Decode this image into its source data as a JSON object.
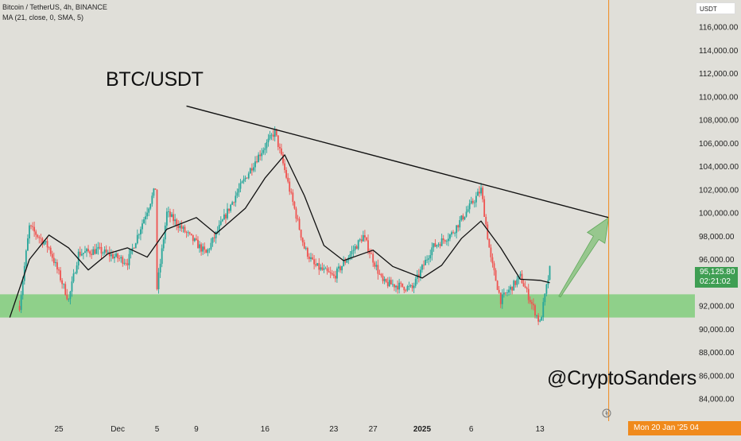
{
  "header": {
    "symbol_line": "Bitcoin / TetherUS, 4h, BINANCE",
    "indicator_line": "MA (21, close, 0, SMA, 5)"
  },
  "annotations": {
    "title": "BTC/USDT",
    "watermark": "@CryptoSanders"
  },
  "price_axis": {
    "currency": "USDT",
    "last_price": "95,125.80",
    "countdown": "02:21:02"
  },
  "time_axis": {
    "crosshair_date": "Mon 20 Jan '25   04"
  },
  "colors": {
    "background": "#e0dfd9",
    "up_candle": "#26a69a",
    "down_candle": "#ef5350",
    "support_zone": "#8fd08a",
    "trendline": "#111111",
    "moving_average": "#111111",
    "crosshair": "#f08a1c",
    "arrow": "#7fbf74"
  },
  "chart_data": {
    "type": "candlestick",
    "ylim": [
      82500,
      117500
    ],
    "y_ticks": [
      "84,000.00",
      "86,000.00",
      "88,000.00",
      "90,000.00",
      "92,000.00",
      "94,000.00",
      "96,000.00",
      "98,000.00",
      "100,000.00",
      "102,000.00",
      "104,000.00",
      "106,000.00",
      "108,000.00",
      "110,000.00",
      "112,000.00",
      "114,000.00",
      "116,000.00"
    ],
    "x_ticks": [
      {
        "label": "25",
        "bold": false
      },
      {
        "label": "Dec",
        "bold": false
      },
      {
        "label": "5",
        "bold": false
      },
      {
        "label": "9",
        "bold": false
      },
      {
        "label": "16",
        "bold": false
      },
      {
        "label": "23",
        "bold": false
      },
      {
        "label": "27",
        "bold": false
      },
      {
        "label": "2025",
        "bold": true
      },
      {
        "label": "6",
        "bold": false
      },
      {
        "label": "13",
        "bold": false
      }
    ],
    "price_path": [
      {
        "date": "2024-11-21",
        "close": 92000
      },
      {
        "date": "2024-11-22",
        "close": 98800
      },
      {
        "date": "2024-11-24",
        "close": 97000
      },
      {
        "date": "2024-11-26",
        "close": 92500
      },
      {
        "date": "2024-11-27",
        "close": 96500
      },
      {
        "date": "2024-11-29",
        "close": 96800
      },
      {
        "date": "2024-12-02",
        "close": 95800
      },
      {
        "date": "2024-12-05",
        "close": 102500
      },
      {
        "date": "2024-12-05",
        "close": 93500
      },
      {
        "date": "2024-12-06",
        "close": 100000
      },
      {
        "date": "2024-12-10",
        "close": 96500
      },
      {
        "date": "2024-12-13",
        "close": 101500
      },
      {
        "date": "2024-12-15",
        "close": 104500
      },
      {
        "date": "2024-12-17",
        "close": 107000
      },
      {
        "date": "2024-12-20",
        "close": 97000
      },
      {
        "date": "2024-12-21",
        "close": 95500
      },
      {
        "date": "2024-12-23",
        "close": 94500
      },
      {
        "date": "2024-12-26",
        "close": 98000
      },
      {
        "date": "2024-12-28",
        "close": 94000
      },
      {
        "date": "2024-12-31",
        "close": 93500
      },
      {
        "date": "2025-01-02",
        "close": 97000
      },
      {
        "date": "2025-01-04",
        "close": 98200
      },
      {
        "date": "2025-01-07",
        "close": 102000
      },
      {
        "date": "2025-01-08",
        "close": 96000
      },
      {
        "date": "2025-01-09",
        "close": 92500
      },
      {
        "date": "2025-01-11",
        "close": 94500
      },
      {
        "date": "2025-01-13",
        "close": 90500
      },
      {
        "date": "2025-01-14",
        "close": 95125.8
      }
    ],
    "moving_average": {
      "name": "MA (21, close, 0, SMA, 5)",
      "points": [
        {
          "date": "2024-11-20",
          "value": 91000
        },
        {
          "date": "2024-11-22",
          "value": 96000
        },
        {
          "date": "2024-11-24",
          "value": 98100
        },
        {
          "date": "2024-11-26",
          "value": 97000
        },
        {
          "date": "2024-11-28",
          "value": 95100
        },
        {
          "date": "2024-11-30",
          "value": 96500
        },
        {
          "date": "2024-12-02",
          "value": 97000
        },
        {
          "date": "2024-12-04",
          "value": 96200
        },
        {
          "date": "2024-12-06",
          "value": 98600
        },
        {
          "date": "2024-12-09",
          "value": 99600
        },
        {
          "date": "2024-12-11",
          "value": 98200
        },
        {
          "date": "2024-12-14",
          "value": 100400
        },
        {
          "date": "2024-12-16",
          "value": 103000
        },
        {
          "date": "2024-12-18",
          "value": 105000
        },
        {
          "date": "2024-12-20",
          "value": 101500
        },
        {
          "date": "2024-12-22",
          "value": 97200
        },
        {
          "date": "2024-12-24",
          "value": 95900
        },
        {
          "date": "2024-12-27",
          "value": 96800
        },
        {
          "date": "2024-12-29",
          "value": 95400
        },
        {
          "date": "2025-01-01",
          "value": 94400
        },
        {
          "date": "2025-01-03",
          "value": 95500
        },
        {
          "date": "2025-01-05",
          "value": 97800
        },
        {
          "date": "2025-01-07",
          "value": 99300
        },
        {
          "date": "2025-01-09",
          "value": 97000
        },
        {
          "date": "2025-01-11",
          "value": 94300
        },
        {
          "date": "2025-01-13",
          "value": 94200
        },
        {
          "date": "2025-01-14",
          "value": 94000
        }
      ]
    },
    "support_zone": {
      "from": 91000,
      "to": 93000
    },
    "trendline": {
      "start": {
        "date": "2024-12-08",
        "price": 109200
      },
      "end": {
        "date": "2025-01-20",
        "price": 99600
      }
    },
    "arrow": {
      "start": {
        "date": "2025-01-15",
        "price": 92800
      },
      "end": {
        "date": "2025-01-20",
        "price": 99600
      }
    },
    "crosshair": {
      "date": "2025-01-20"
    },
    "candle_interval": "4h",
    "last_price": 95125.8
  }
}
